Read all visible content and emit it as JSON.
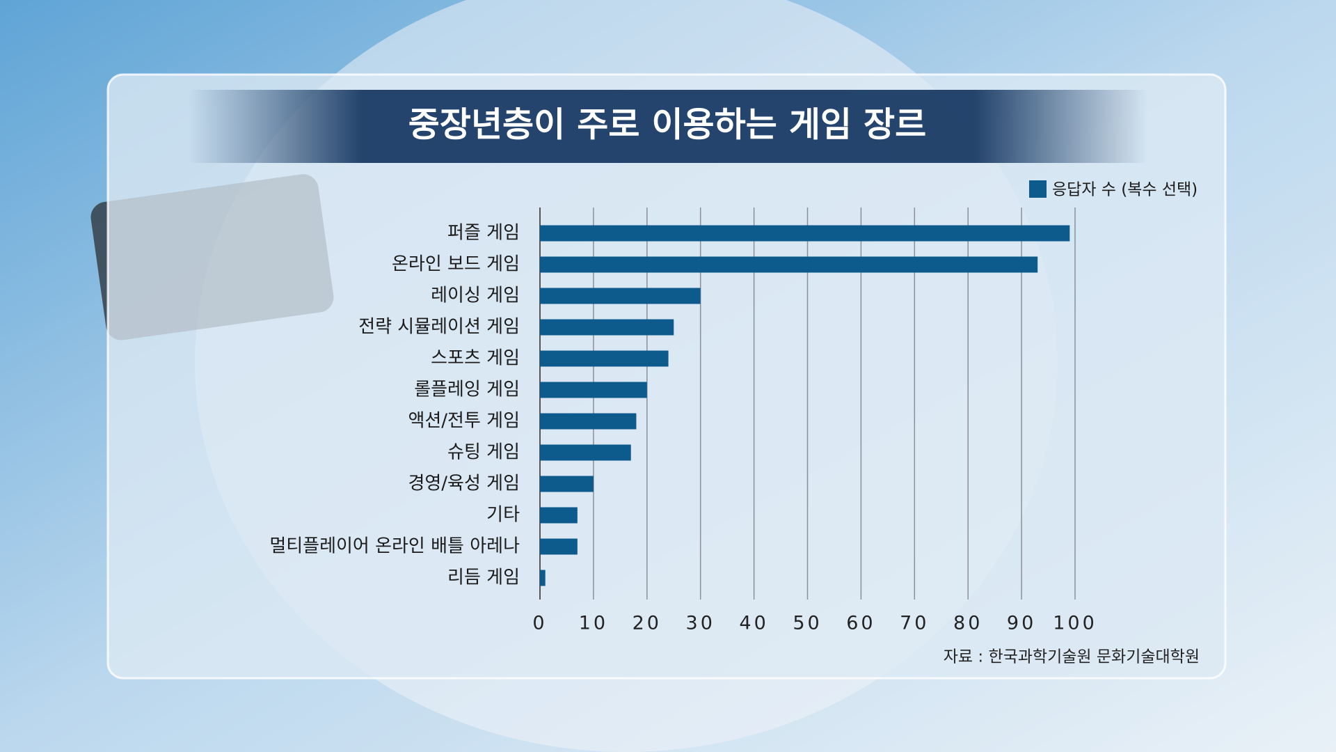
{
  "chart_data": {
    "type": "hbar",
    "title": "중장년층이 주로 이용하는 게임 장르",
    "source": "자료 : 한국과학기술원 문화기술대학원",
    "categories": [
      "퍼즐 게임",
      "온라인 보드 게임",
      "레이싱 게임",
      "전략 시뮬레이션 게임",
      "스포츠 게임",
      "롤플레잉 게임",
      "액션/전투 게임",
      "슈팅 게임",
      "경영/육성 게임",
      "기타",
      "멀티플레이어 온라인 배틀 아레나",
      "리듬 게임"
    ],
    "series": [
      {
        "name": "응답자 수 (복수 선택)",
        "color": "#0d5a8c",
        "values": [
          99,
          93,
          30,
          25,
          24,
          20,
          18,
          17,
          10,
          7,
          7,
          1
        ]
      }
    ],
    "xlim": [
      0,
      100
    ],
    "xticks": [
      0,
      10,
      20,
      30,
      40,
      50,
      60,
      70,
      80,
      90,
      100
    ],
    "grid": true,
    "legend": "top-right"
  }
}
